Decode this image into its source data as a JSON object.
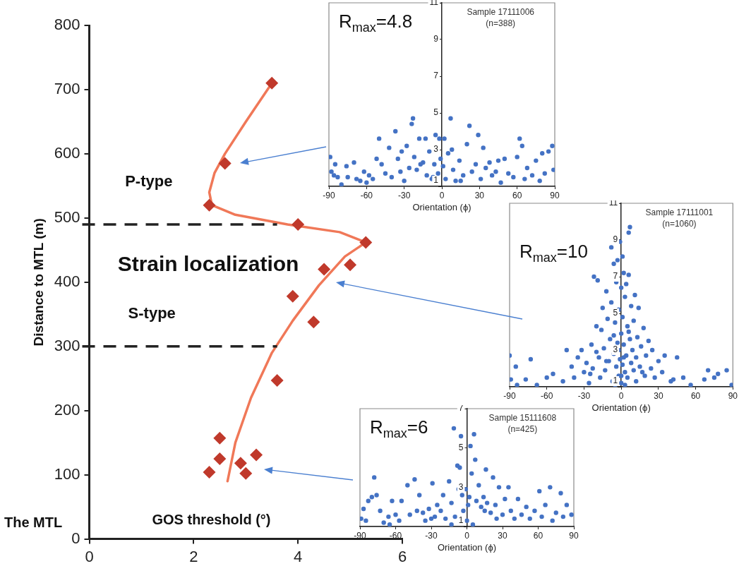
{
  "chart_data": [
    {
      "type": "scatter",
      "xlabel": "GOS threshold (°)",
      "ylabel": "Distance to MTL (m)",
      "xlim": [
        0,
        6
      ],
      "xticks": [
        0,
        2,
        4,
        6
      ],
      "ylim": [
        0,
        800
      ],
      "yticks": [
        0,
        100,
        200,
        300,
        400,
        500,
        600,
        700,
        800
      ],
      "marker": "diamond",
      "series": [
        {
          "color": "#c0392b",
          "x": [
            3.5,
            2.6,
            2.3,
            4.0,
            5.3,
            5.0,
            4.5,
            3.9,
            4.3,
            3.6,
            2.5,
            3.2,
            2.5,
            2.9,
            2.3,
            3.0
          ],
          "values": [
            710,
            585,
            520,
            490,
            462,
            427,
            420,
            378,
            338,
            247,
            157,
            131,
            125,
            118,
            104,
            102
          ]
        },
        {
          "type": "line",
          "marker": "none",
          "color": "#f07858",
          "x": [
            2.65,
            2.8,
            3.1,
            3.5,
            3.9,
            4.4,
            4.9,
            5.3,
            4.8,
            3.8,
            2.8,
            2.35,
            2.3,
            2.4,
            2.6,
            3.0,
            3.5
          ],
          "values": [
            90,
            150,
            220,
            290,
            340,
            395,
            440,
            462,
            478,
            490,
            505,
            520,
            540,
            570,
            600,
            650,
            710
          ]
        }
      ],
      "ref_lines": [
        {
          "axis": "y",
          "value": 490,
          "line_style": "dashed",
          "color": "#222222"
        },
        {
          "axis": "y",
          "value": 300,
          "line_style": "dashed",
          "color": "#222222"
        }
      ],
      "annotations": [
        "P-type",
        "Strain localization",
        "S-type",
        "The MTL"
      ]
    },
    {
      "type": "scatter",
      "title": "R$_{max}$=4.8",
      "xlabel": "Orientation (ϕ)",
      "xlim": [
        -90,
        90
      ],
      "xticks": [
        -90,
        -60,
        -30,
        0,
        30,
        60,
        90
      ],
      "ylim": [
        1,
        11
      ],
      "yticks": [
        1,
        3,
        5,
        7,
        9,
        11
      ],
      "marker": "circle",
      "annotations": [
        "Sample 17111006",
        "(n=388)"
      ],
      "series": [
        {
          "color": "#4472c4",
          "x": [
            -89,
            -88,
            -86,
            -85,
            -83,
            -80,
            -76,
            -70,
            -68,
            -65,
            -62,
            -58,
            -55,
            -52,
            -50,
            -48,
            -45,
            -42,
            -40,
            -37,
            -35,
            -33,
            -30,
            -28,
            -26,
            -24,
            -23,
            -22,
            -20,
            -18,
            -15,
            -13,
            -12,
            -10,
            -8,
            -6,
            -5,
            -3,
            -2,
            -1,
            1,
            2,
            3,
            5,
            7,
            8,
            9,
            11,
            14,
            17,
            20,
            22,
            24,
            27,
            29,
            31,
            33,
            35,
            38,
            40,
            43,
            47,
            50,
            53,
            57,
            60,
            62,
            64,
            66,
            68,
            72,
            75,
            78,
            80,
            82,
            85,
            88,
            89,
            -75,
            -60,
            -32,
            45,
            15,
            -17,
            -7
          ],
          "values": [
            2.6,
            1.8,
            1.6,
            2.2,
            1.5,
            1.1,
            2.1,
            2.3,
            1.4,
            1.3,
            1.8,
            1.6,
            1.4,
            2.5,
            3.6,
            2.2,
            1.7,
            3.1,
            1.5,
            4.0,
            2.5,
            1.8,
            1.3,
            3.2,
            2.0,
            4.4,
            4.7,
            2.6,
            1.9,
            3.6,
            2.3,
            3.6,
            1.6,
            2.9,
            1.4,
            2.2,
            3.8,
            1.7,
            3.6,
            2.5,
            2.1,
            3.6,
            1.4,
            2.8,
            4.7,
            3.0,
            1.9,
            1.3,
            2.4,
            1.6,
            3.3,
            4.3,
            1.8,
            2.2,
            3.8,
            1.4,
            3.1,
            2.0,
            2.3,
            1.6,
            1.8,
            1.2,
            2.5,
            1.7,
            1.5,
            2.6,
            3.6,
            3.2,
            1.4,
            2.0,
            1.6,
            2.4,
            1.3,
            2.8,
            1.7,
            2.9,
            3.2,
            1.9,
            1.5,
            1.2,
            2.9,
            2.4,
            1.3,
            2.2,
            1.5
          ]
        }
      ]
    },
    {
      "type": "scatter",
      "title": "R$_{max}$=10",
      "xlabel": "Orientation (ϕ)",
      "xlim": [
        -90,
        90
      ],
      "xticks": [
        -90,
        -60,
        -30,
        0,
        30,
        60,
        90
      ],
      "ylim": [
        1,
        11
      ],
      "yticks": [
        1,
        3,
        5,
        7,
        9,
        11
      ],
      "marker": "circle",
      "annotations": [
        "Sample 17111001",
        "(n=1060)"
      ],
      "series": [
        {
          "color": "#4472c4",
          "x": [
            -90,
            -89,
            -85,
            -84,
            -77,
            -73,
            -68,
            -60,
            -55,
            -47,
            -44,
            -40,
            -38,
            -35,
            -32,
            -30,
            -28,
            -26,
            -24,
            -23,
            -22,
            -20,
            -19,
            -18,
            -17,
            -16,
            -15,
            -14,
            -13,
            -12,
            -11,
            -10,
            -9,
            -8,
            -8,
            -7,
            -6,
            -6,
            -5,
            -4,
            -4,
            -3,
            -3,
            -2,
            -2,
            -1,
            -1,
            0,
            0,
            0,
            1,
            1,
            1,
            2,
            2,
            3,
            3,
            4,
            4,
            5,
            5,
            6,
            6,
            7,
            7,
            8,
            8,
            9,
            10,
            10,
            11,
            12,
            13,
            14,
            15,
            16,
            18,
            19,
            20,
            22,
            24,
            25,
            27,
            30,
            33,
            35,
            40,
            42,
            45,
            50,
            56,
            67,
            70,
            75,
            78,
            85,
            89,
            -5,
            0,
            3,
            -12,
            -20,
            -25,
            12,
            17,
            -2,
            2,
            -6,
            6
          ],
          "values": [
            2.7,
            1.4,
            2.1,
            1.1,
            1.4,
            2.5,
            1.1,
            1.5,
            1.7,
            1.3,
            3.0,
            2.1,
            1.5,
            2.6,
            3.0,
            1.8,
            2.3,
            1.2,
            3.3,
            2.0,
            7.0,
            4.3,
            6.8,
            2.6,
            1.5,
            4.1,
            5.3,
            3.1,
            1.9,
            6.2,
            4.7,
            2.4,
            3.6,
            8.6,
            5.6,
            1.3,
            7.7,
            2.8,
            4.5,
            6.7,
            2.1,
            7.9,
            3.4,
            5.2,
            1.6,
            8.9,
            2.5,
            6.4,
            3.9,
            1.2,
            8.1,
            4.8,
            2.2,
            7.2,
            3.3,
            5.9,
            1.8,
            6.6,
            2.7,
            4.3,
            1.5,
            7.1,
            9.4,
            3.6,
            9.7,
            5.4,
            2.3,
            3.0,
            4.6,
            1.9,
            6.0,
            2.6,
            3.7,
            5.3,
            2.1,
            3.2,
            4.2,
            1.6,
            2.7,
            3.5,
            2.0,
            3.0,
            1.5,
            2.4,
            1.8,
            2.7,
            1.3,
            1.4,
            2.6,
            1.5,
            1.1,
            1.4,
            1.9,
            1.5,
            1.7,
            1.9,
            1.1,
            1.1,
            1.6,
            1.1,
            2.4,
            2.9,
            1.7,
            1.3,
            1.8,
            3.0,
            2.6,
            3.8,
            4.0
          ]
        }
      ]
    },
    {
      "type": "scatter",
      "title": "R$_{max}$=6",
      "xlabel": "Orientation (ϕ)",
      "xlim": [
        -90,
        90
      ],
      "xticks": [
        -90,
        -60,
        -30,
        0,
        30,
        60,
        90
      ],
      "ylim": [
        1,
        7
      ],
      "yticks": [
        1,
        3,
        5,
        7
      ],
      "marker": "circle",
      "annotations": [
        "Sample 15111608",
        "(n=425)"
      ],
      "series": [
        {
          "color": "#4472c4",
          "x": [
            -89,
            -87,
            -85,
            -83,
            -80,
            -78,
            -76,
            -73,
            -70,
            -66,
            -63,
            -60,
            -57,
            -55,
            -50,
            -48,
            -44,
            -42,
            -40,
            -37,
            -35,
            -32,
            -29,
            -27,
            -25,
            -22,
            -20,
            -18,
            -15,
            -13,
            -11,
            -10,
            -8,
            -7,
            -6,
            -5,
            -4,
            -3,
            -1,
            0,
            1,
            3,
            4,
            6,
            7,
            8,
            10,
            12,
            14,
            16,
            17,
            20,
            22,
            24,
            27,
            30,
            32,
            35,
            37,
            40,
            43,
            46,
            50,
            53,
            57,
            61,
            63,
            66,
            70,
            72,
            75,
            79,
            81,
            84,
            88,
            -13,
            5,
            25,
            -30,
            -65,
            15,
            2
          ],
          "values": [
            1.4,
            1.9,
            1.3,
            2.3,
            2.5,
            3.5,
            2.6,
            1.8,
            1.2,
            1.5,
            2.3,
            1.6,
            1.3,
            2.3,
            3.1,
            1.6,
            3.4,
            1.8,
            2.6,
            1.7,
            1.3,
            1.9,
            3.2,
            1.5,
            2.1,
            1.8,
            2.6,
            1.4,
            3.3,
            2.2,
            6.0,
            1.5,
            4.1,
            2.9,
            4.0,
            5.6,
            2.6,
            1.8,
            2.9,
            1.3,
            2.1,
            5.1,
            3.7,
            5.7,
            4.4,
            2.3,
            3.1,
            2.0,
            2.5,
            3.9,
            2.2,
            1.7,
            3.5,
            2.1,
            3.0,
            1.6,
            2.4,
            3.0,
            1.8,
            1.4,
            2.4,
            1.6,
            2.0,
            1.4,
            1.8,
            2.8,
            1.5,
            2.1,
            3.0,
            1.3,
            1.7,
            2.7,
            1.5,
            2.1,
            1.6,
            1.1,
            1.1,
            1.4,
            1.4,
            1.1,
            1.8,
            2.5
          ]
        }
      ]
    }
  ]
}
